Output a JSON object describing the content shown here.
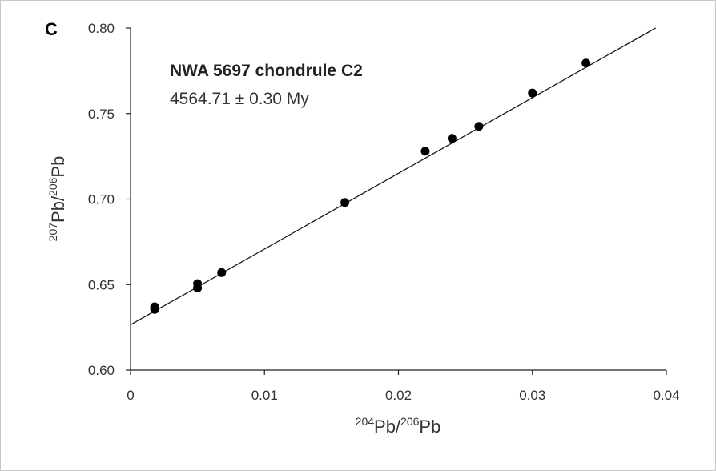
{
  "panel_label": "C",
  "chart_data": {
    "type": "scatter",
    "xlabel": {
      "sup1": "204",
      "base1": "Pb/",
      "sup2": "206",
      "base2": "Pb"
    },
    "ylabel": {
      "sup1": "207",
      "base1": "Pb/",
      "sup2": "206",
      "base2": "Pb"
    },
    "xlim": [
      0,
      0.04
    ],
    "ylim": [
      0.6,
      0.8
    ],
    "x_ticks": [
      0,
      0.01,
      0.02,
      0.03,
      0.04
    ],
    "x_tick_labels": [
      "0",
      "0.01",
      "0.02",
      "0.03",
      "0.04"
    ],
    "y_ticks": [
      0.6,
      0.65,
      0.7,
      0.75,
      0.8
    ],
    "y_tick_labels": [
      "0.60",
      "0.65",
      "0.70",
      "0.75",
      "0.80"
    ],
    "grid": false,
    "annotation_title": "NWA 5697 chondrule C2",
    "annotation_age": "4564.71 ± 0.30 My",
    "points": [
      {
        "x": 0.0018,
        "y": 0.637
      },
      {
        "x": 0.0018,
        "y": 0.6355
      },
      {
        "x": 0.005,
        "y": 0.6505
      },
      {
        "x": 0.005,
        "y": 0.648
      },
      {
        "x": 0.0068,
        "y": 0.657
      },
      {
        "x": 0.016,
        "y": 0.698
      },
      {
        "x": 0.022,
        "y": 0.728
      },
      {
        "x": 0.024,
        "y": 0.7355
      },
      {
        "x": 0.026,
        "y": 0.7425
      },
      {
        "x": 0.03,
        "y": 0.762
      },
      {
        "x": 0.034,
        "y": 0.7795
      }
    ],
    "regression_line": {
      "x_start": 0.0,
      "y_start": 0.6265,
      "x_end": 0.0392,
      "y_end": 0.8
    },
    "colors": {
      "points": "#000000",
      "line": "#1a1a1a",
      "axis": "#222222"
    }
  }
}
